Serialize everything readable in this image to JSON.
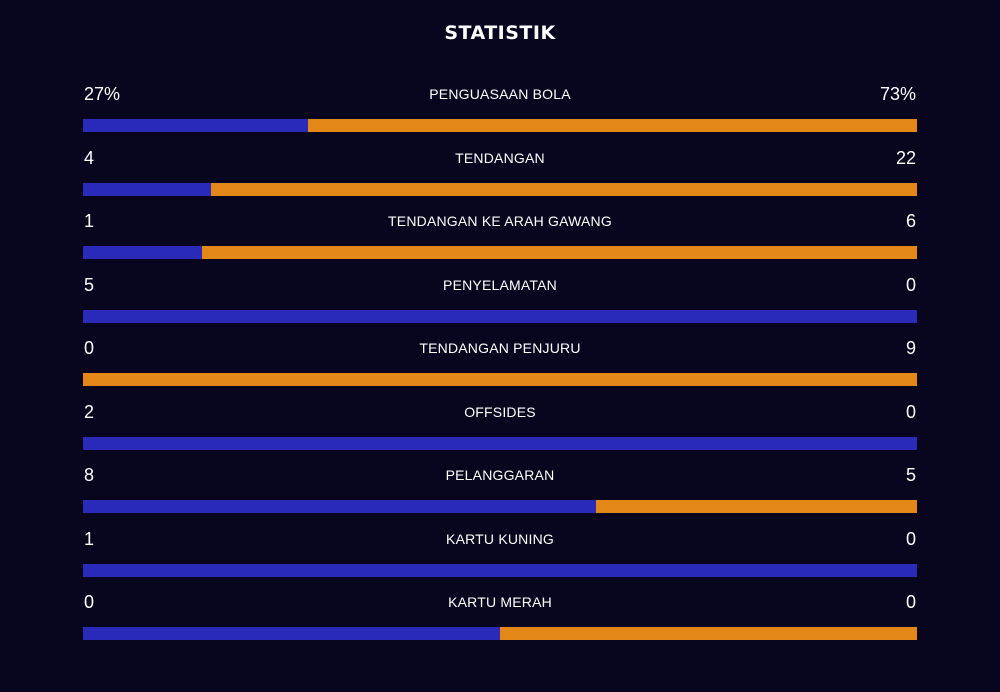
{
  "title": "STATISTIK",
  "colors": {
    "background": "#08061f",
    "home": "#2a2ab8",
    "away": "#e48719"
  },
  "stats": [
    {
      "label": "PENGUASAAN BOLA",
      "home": "27%",
      "away": "73%",
      "home_share": 0.27
    },
    {
      "label": "TENDANGAN",
      "home": "4",
      "away": "22",
      "home_share": 0.1538
    },
    {
      "label": "TENDANGAN KE ARAH GAWANG",
      "home": "1",
      "away": "6",
      "home_share": 0.1429
    },
    {
      "label": "PENYELAMATAN",
      "home": "5",
      "away": "0",
      "home_share": 1.0
    },
    {
      "label": "TENDANGAN PENJURU",
      "home": "0",
      "away": "9",
      "home_share": 0.0
    },
    {
      "label": "OFFSIDES",
      "home": "2",
      "away": "0",
      "home_share": 1.0
    },
    {
      "label": "PELANGGARAN",
      "home": "8",
      "away": "5",
      "home_share": 0.6154
    },
    {
      "label": "KARTU KUNING",
      "home": "1",
      "away": "0",
      "home_share": 1.0
    },
    {
      "label": "KARTU MERAH",
      "home": "0",
      "away": "0",
      "home_share": 0.5
    }
  ]
}
